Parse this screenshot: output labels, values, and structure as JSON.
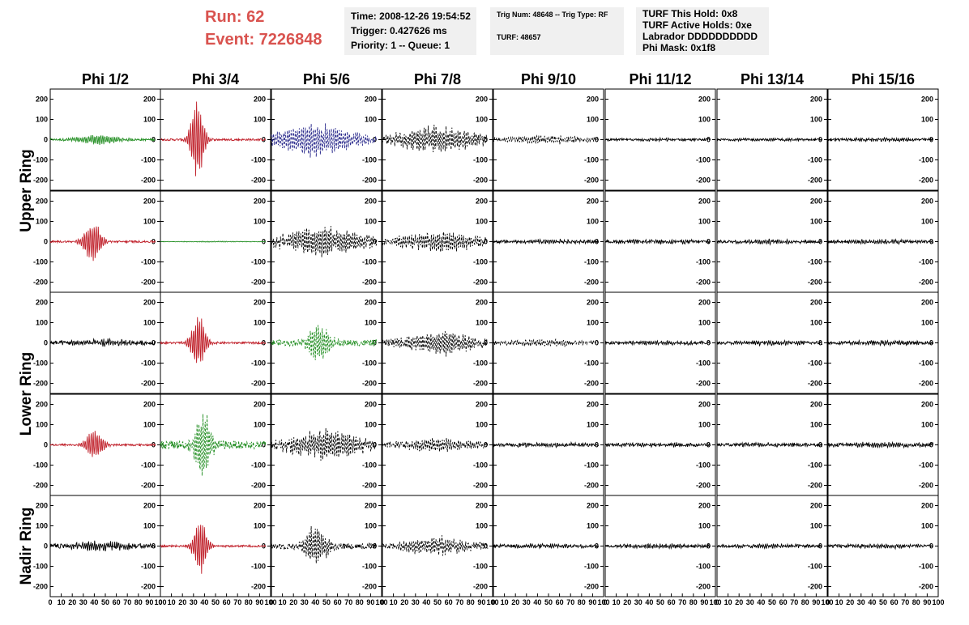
{
  "header": {
    "run_label": "Run:    62",
    "event_label": "Event: 7226848",
    "info_box_1": [
      "Time: 2008-12-26 19:54:52",
      "Trigger: 0.427626 ms",
      "Priority: 1 -- Queue: 1"
    ],
    "info_box_2": [
      "Trig Num: 48648 -- Trig Type: RF",
      "TURF: 48657"
    ],
    "info_box_3": [
      "TURF This Hold: 0x8",
      "TURF Active Holds: 0xe",
      "Labrador DDDDDDDDDD",
      "Phi Mask: 0x1f8"
    ]
  },
  "chart_data": {
    "type": "line",
    "column_titles": [
      "Phi 1/2",
      "Phi 3/4",
      "Phi 5/6",
      "Phi 7/8",
      "Phi 9/10",
      "Phi 11/12",
      "Phi 13/14",
      "Phi 15/16"
    ],
    "ring_labels": [
      "Upper Ring",
      "Lower Ring",
      "Nadir Ring"
    ],
    "ring_rows": [
      [
        0,
        1
      ],
      [
        2,
        3
      ],
      [
        4
      ]
    ],
    "xlim": [
      0,
      100
    ],
    "ylim": [
      -250,
      250
    ],
    "x_ticks": [
      0,
      10,
      20,
      30,
      40,
      50,
      60,
      70,
      80,
      90,
      100
    ],
    "y_ticks": [
      -200,
      -100,
      0,
      100,
      200
    ],
    "color_map": {
      "k": "#000000",
      "r": "#c0202a",
      "g": "#1e8c1e",
      "b": "#2a2a8c"
    },
    "dash_map": {
      "s": "",
      "d": "3,2"
    },
    "traces_comment": "",
    "traces": [
      [
        {
          "color": "g",
          "style": "s",
          "amplitude": 25,
          "peak_at": 45,
          "width": 22,
          "noise": 5
        },
        {
          "color": "r",
          "style": "s",
          "amplitude": 200,
          "peak_at": 35,
          "width": 7,
          "noise": 5
        },
        {
          "color": "b",
          "style": "d",
          "amplitude": 80,
          "peak_at": 40,
          "width": 40,
          "noise": 15
        },
        {
          "color": "k",
          "style": "d",
          "amplitude": 60,
          "peak_at": 50,
          "width": 40,
          "noise": 20
        },
        {
          "color": "k",
          "style": "d",
          "amplitude": 20,
          "peak_at": 50,
          "width": 40,
          "noise": 8
        },
        {
          "color": "k",
          "style": "s",
          "amplitude": 5,
          "peak_at": 50,
          "width": 40,
          "noise": 5
        },
        {
          "color": "k",
          "style": "s",
          "amplitude": 5,
          "peak_at": 50,
          "width": 40,
          "noise": 5
        },
        {
          "color": "k",
          "style": "s",
          "amplitude": 6,
          "peak_at": 50,
          "width": 40,
          "noise": 6
        }
      ],
      [
        {
          "color": "r",
          "style": "s",
          "amplitude": 110,
          "peak_at": 40,
          "width": 9,
          "noise": 5
        },
        {
          "color": "g",
          "style": "s",
          "amplitude": 2,
          "peak_at": 50,
          "width": 40,
          "noise": 1
        },
        {
          "color": "k",
          "style": "d",
          "amplitude": 70,
          "peak_at": 50,
          "width": 40,
          "noise": 20
        },
        {
          "color": "k",
          "style": "d",
          "amplitude": 50,
          "peak_at": 55,
          "width": 40,
          "noise": 15
        },
        {
          "color": "k",
          "style": "s",
          "amplitude": 8,
          "peak_at": 50,
          "width": 40,
          "noise": 7
        },
        {
          "color": "k",
          "style": "s",
          "amplitude": 8,
          "peak_at": 50,
          "width": 40,
          "noise": 7
        },
        {
          "color": "k",
          "style": "s",
          "amplitude": 8,
          "peak_at": 50,
          "width": 40,
          "noise": 7
        },
        {
          "color": "k",
          "style": "s",
          "amplitude": 8,
          "peak_at": 50,
          "width": 40,
          "noise": 7
        }
      ],
      [
        {
          "color": "k",
          "style": "s",
          "amplitude": 15,
          "peak_at": 50,
          "width": 30,
          "noise": 10
        },
        {
          "color": "r",
          "style": "s",
          "amplitude": 140,
          "peak_at": 36,
          "width": 8,
          "noise": 5
        },
        {
          "color": "g",
          "style": "d",
          "amplitude": 100,
          "peak_at": 45,
          "width": 12,
          "noise": 15
        },
        {
          "color": "k",
          "style": "d",
          "amplitude": 60,
          "peak_at": 55,
          "width": 35,
          "noise": 15
        },
        {
          "color": "k",
          "style": "d",
          "amplitude": 15,
          "peak_at": 50,
          "width": 40,
          "noise": 8
        },
        {
          "color": "k",
          "style": "s",
          "amplitude": 8,
          "peak_at": 50,
          "width": 40,
          "noise": 7
        },
        {
          "color": "k",
          "style": "s",
          "amplitude": 8,
          "peak_at": 50,
          "width": 40,
          "noise": 7
        },
        {
          "color": "k",
          "style": "s",
          "amplitude": 8,
          "peak_at": 50,
          "width": 40,
          "noise": 7
        }
      ],
      [
        {
          "color": "r",
          "style": "s",
          "amplitude": 80,
          "peak_at": 42,
          "width": 9,
          "noise": 5
        },
        {
          "color": "g",
          "style": "d",
          "amplitude": 180,
          "peak_at": 40,
          "width": 9,
          "noise": 20
        },
        {
          "color": "k",
          "style": "d",
          "amplitude": 70,
          "peak_at": 50,
          "width": 40,
          "noise": 20
        },
        {
          "color": "k",
          "style": "d",
          "amplitude": 30,
          "peak_at": 55,
          "width": 40,
          "noise": 12
        },
        {
          "color": "k",
          "style": "s",
          "amplitude": 8,
          "peak_at": 50,
          "width": 40,
          "noise": 7
        },
        {
          "color": "k",
          "style": "s",
          "amplitude": 8,
          "peak_at": 50,
          "width": 40,
          "noise": 7
        },
        {
          "color": "k",
          "style": "s",
          "amplitude": 8,
          "peak_at": 50,
          "width": 40,
          "noise": 7
        },
        {
          "color": "k",
          "style": "s",
          "amplitude": 10,
          "peak_at": 50,
          "width": 40,
          "noise": 8
        }
      ],
      [
        {
          "color": "k",
          "style": "s",
          "amplitude": 20,
          "peak_at": 50,
          "width": 30,
          "noise": 12
        },
        {
          "color": "r",
          "style": "s",
          "amplitude": 150,
          "peak_at": 38,
          "width": 7,
          "noise": 5
        },
        {
          "color": "k",
          "style": "d",
          "amplitude": 100,
          "peak_at": 42,
          "width": 12,
          "noise": 15
        },
        {
          "color": "k",
          "style": "d",
          "amplitude": 50,
          "peak_at": 50,
          "width": 30,
          "noise": 15
        },
        {
          "color": "k",
          "style": "s",
          "amplitude": 8,
          "peak_at": 50,
          "width": 40,
          "noise": 7
        },
        {
          "color": "k",
          "style": "s",
          "amplitude": 8,
          "peak_at": 50,
          "width": 40,
          "noise": 7
        },
        {
          "color": "k",
          "style": "s",
          "amplitude": 8,
          "peak_at": 50,
          "width": 40,
          "noise": 7
        },
        {
          "color": "k",
          "style": "s",
          "amplitude": 8,
          "peak_at": 50,
          "width": 40,
          "noise": 7
        }
      ]
    ]
  }
}
